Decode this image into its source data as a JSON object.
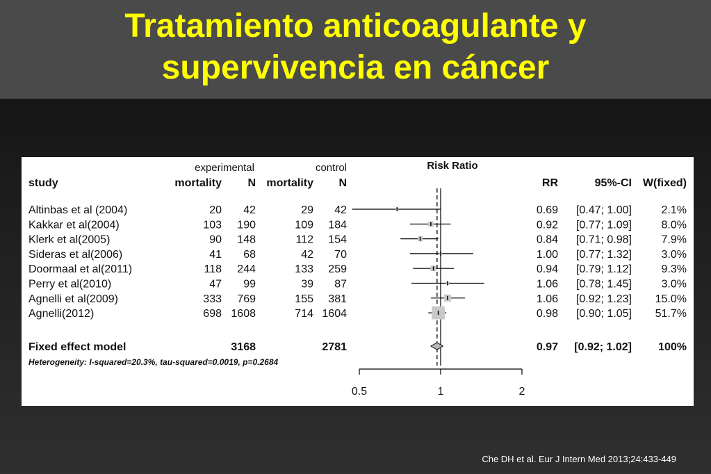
{
  "slide": {
    "title_line1": "Tratamiento anticoagulante y",
    "title_line2": "supervivencia en cáncer",
    "citation": "Che DH et al. Eur J Intern Med 2013;24:433-449",
    "title_color": "#ffff00"
  },
  "chart_data": {
    "type": "forest",
    "plot_title": "Risk Ratio",
    "headers": {
      "group_experimental": "experimental",
      "group_control": "control",
      "study": "study",
      "mortality": "mortality",
      "n": "N",
      "rr": "RR",
      "ci": "95%-CI",
      "weight": "W(fixed)"
    },
    "xaxis": {
      "scale": "log",
      "ticks": [
        "0.5",
        "1",
        "2"
      ],
      "xlim": [
        0.5,
        2
      ]
    },
    "studies": [
      {
        "study": "Altinbas  et al (2004)",
        "exp_mortality": "20",
        "exp_n": "42",
        "ctrl_mortality": "29",
        "ctrl_n": "42",
        "rr": 0.69,
        "lower": 0.47,
        "upper": 1.0,
        "rr_text": "0.69",
        "ci_text": "[0.47; 1.00]",
        "weight_text": "2.1%",
        "weight": 2.1
      },
      {
        "study": "Kakkar et al(2004)",
        "exp_mortality": "103",
        "exp_n": "190",
        "ctrl_mortality": "109",
        "ctrl_n": "184",
        "rr": 0.92,
        "lower": 0.77,
        "upper": 1.09,
        "rr_text": "0.92",
        "ci_text": "[0.77; 1.09]",
        "weight_text": "8.0%",
        "weight": 8.0
      },
      {
        "study": "Klerk et al(2005)",
        "exp_mortality": "90",
        "exp_n": "148",
        "ctrl_mortality": "112",
        "ctrl_n": "154",
        "rr": 0.84,
        "lower": 0.71,
        "upper": 0.98,
        "rr_text": "0.84",
        "ci_text": "[0.71; 0.98]",
        "weight_text": "7.9%",
        "weight": 7.9
      },
      {
        "study": "Sideras et al(2006)",
        "exp_mortality": "41",
        "exp_n": "68",
        "ctrl_mortality": "42",
        "ctrl_n": "70",
        "rr": 1.0,
        "lower": 0.77,
        "upper": 1.32,
        "rr_text": "1.00",
        "ci_text": "[0.77; 1.32]",
        "weight_text": "3.0%",
        "weight": 3.0
      },
      {
        "study": "Doormaal et al(2011)",
        "exp_mortality": "118",
        "exp_n": "244",
        "ctrl_mortality": "133",
        "ctrl_n": "259",
        "rr": 0.94,
        "lower": 0.79,
        "upper": 1.12,
        "rr_text": "0.94",
        "ci_text": "[0.79; 1.12]",
        "weight_text": "9.3%",
        "weight": 9.3
      },
      {
        "study": "Perry et al(2010)",
        "exp_mortality": "47",
        "exp_n": "99",
        "ctrl_mortality": "39",
        "ctrl_n": "87",
        "rr": 1.06,
        "lower": 0.78,
        "upper": 1.45,
        "rr_text": "1.06",
        "ci_text": "[0.78; 1.45]",
        "weight_text": "3.0%",
        "weight": 3.0
      },
      {
        "study": "Agnelli et al(2009)",
        "exp_mortality": "333",
        "exp_n": "769",
        "ctrl_mortality": "155",
        "ctrl_n": "381",
        "rr": 1.06,
        "lower": 0.92,
        "upper": 1.23,
        "rr_text": "1.06",
        "ci_text": "[0.92; 1.23]",
        "weight_text": "15.0%",
        "weight": 15.0
      },
      {
        "study": "Agnelli(2012)",
        "exp_mortality": "698",
        "exp_n": "1608",
        "ctrl_mortality": "714",
        "ctrl_n": "1604",
        "rr": 0.98,
        "lower": 0.9,
        "upper": 1.05,
        "rr_text": "0.98",
        "ci_text": "[0.90; 1.05]",
        "weight_text": "51.7%",
        "weight": 51.7
      }
    ],
    "pooled": {
      "label": "Fixed effect model",
      "exp_n": "3168",
      "ctrl_n": "2781",
      "rr": 0.97,
      "lower": 0.92,
      "upper": 1.02,
      "rr_text": "0.97",
      "ci_text": "[0.92; 1.02]",
      "weight_text": "100%"
    },
    "heterogeneity": "Heterogeneity: I-squared=20.3%, tau-squared=0.0019, p=0.2684"
  }
}
